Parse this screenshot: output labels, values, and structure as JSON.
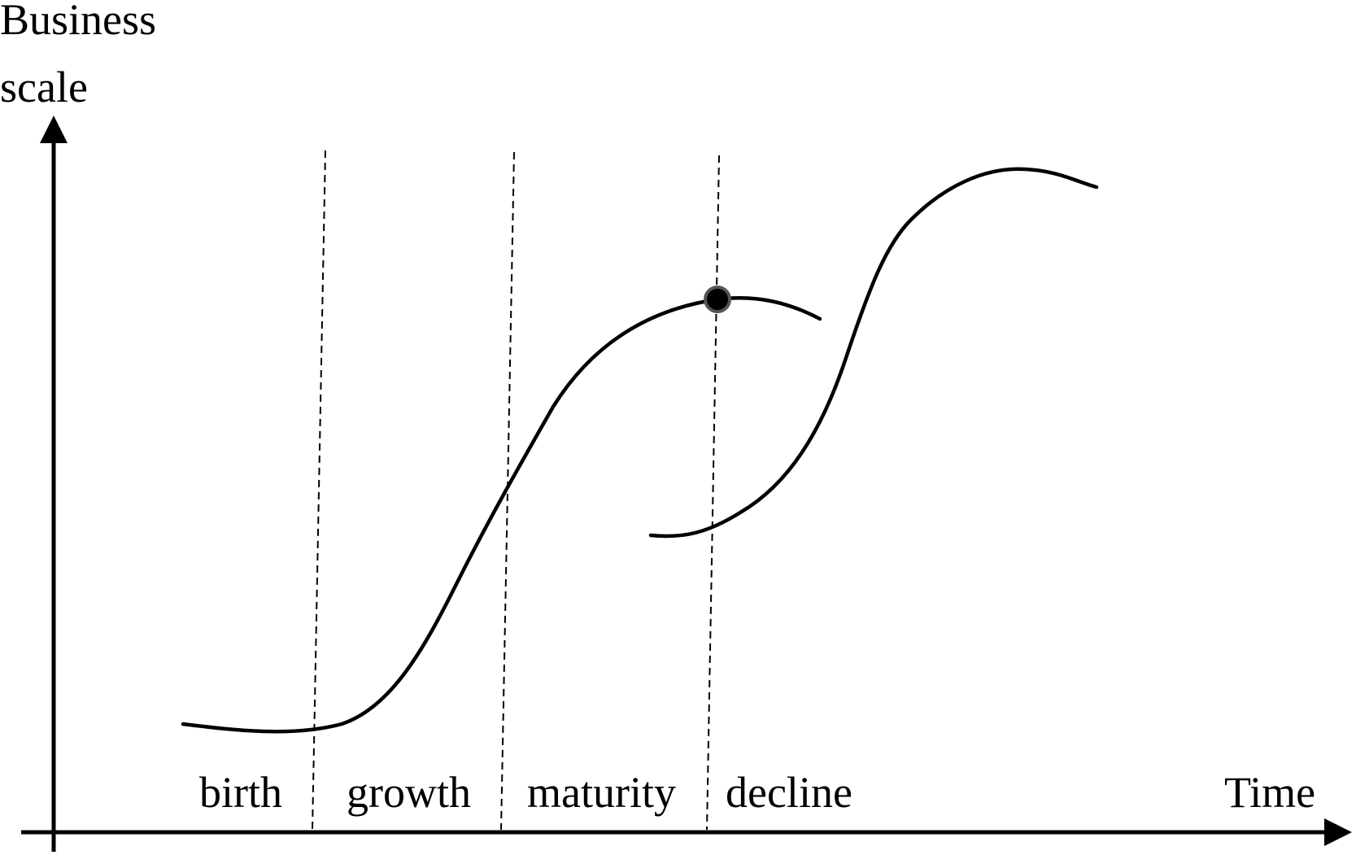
{
  "y_axis": {
    "label_line1": "Business",
    "label_line2": "scale"
  },
  "x_axis": {
    "label": "Time"
  },
  "stages": [
    {
      "label": "birth"
    },
    {
      "label": "growth"
    },
    {
      "label": "maturity"
    },
    {
      "label": "decline"
    }
  ],
  "colors": {
    "line": "#000000",
    "background": "#ffffff",
    "dot_outline": "#555555"
  }
}
